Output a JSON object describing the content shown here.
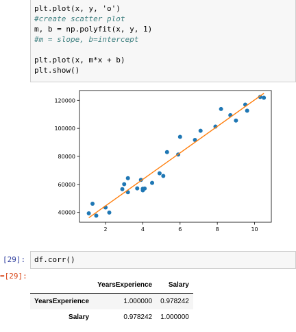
{
  "cell1": {
    "lines": [
      {
        "kind": "code",
        "text": "plt.plot(x, y, 'o')"
      },
      {
        "kind": "comment",
        "text": "#create scatter plot"
      },
      {
        "kind": "code",
        "text": "m, b = np.polyfit(x, y, 1)"
      },
      {
        "kind": "comment",
        "text": "#m = slope, b=intercept"
      },
      {
        "kind": "blank",
        "text": ""
      },
      {
        "kind": "code",
        "text": "plt.plot(x, m*x + b)"
      },
      {
        "kind": "code",
        "text": "plt.show()"
      }
    ]
  },
  "chart_data": {
    "type": "scatter",
    "title": "",
    "xlabel": "",
    "ylabel": "",
    "xlim": [
      0.6,
      10.9
    ],
    "ylim": [
      33000,
      127000
    ],
    "xticks": [
      2,
      4,
      6,
      8,
      10
    ],
    "yticks": [
      40000,
      60000,
      80000,
      100000,
      120000
    ],
    "grid": false,
    "points": {
      "color": "#1f77b4",
      "x": [
        1.1,
        1.3,
        1.5,
        2.0,
        2.2,
        2.9,
        3.0,
        3.2,
        3.2,
        3.7,
        3.9,
        4.0,
        4.0,
        4.1,
        4.5,
        4.9,
        5.1,
        5.3,
        5.9,
        6.0,
        6.8,
        7.1,
        7.9,
        8.2,
        8.7,
        9.0,
        9.5,
        9.6,
        10.3,
        10.5
      ],
      "y": [
        39343,
        46205,
        37731,
        43525,
        39891,
        56642,
        60150,
        54445,
        64445,
        57189,
        63218,
        55794,
        56957,
        57081,
        61111,
        67938,
        66029,
        83088,
        81363,
        93940,
        91738,
        98273,
        101302,
        113812,
        109431,
        105582,
        116969,
        112635,
        122391,
        121872
      ]
    },
    "fit_line": {
      "color": "#ff7f0e",
      "slope": 9449.96,
      "intercept": 25792.2,
      "x_range": [
        1.1,
        10.5
      ]
    }
  },
  "cell2": {
    "prompt": "[29]:",
    "code": "df.corr()",
    "out_prompt": "[29]:"
  },
  "corr_table": {
    "columns": [
      "YearsExperience",
      "Salary"
    ],
    "rows": [
      {
        "label": "YearsExperience",
        "values": [
          "1.000000",
          "0.978242"
        ]
      },
      {
        "label": "Salary",
        "values": [
          "0.978242",
          "1.000000"
        ]
      }
    ]
  }
}
